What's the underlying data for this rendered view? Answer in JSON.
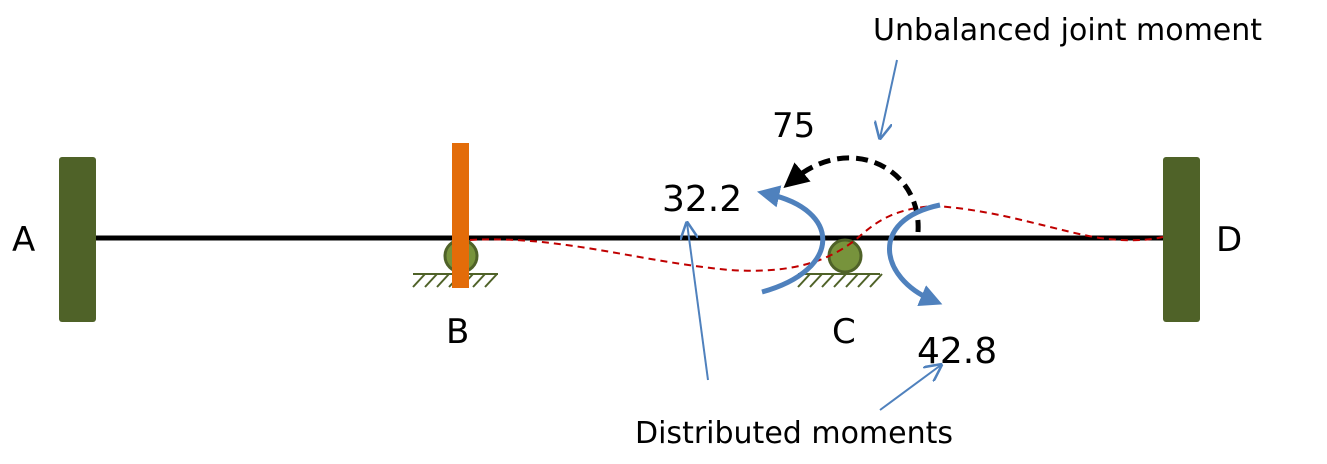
{
  "labels": {
    "support_a": "A",
    "support_b": "B",
    "support_c": "C",
    "support_d": "D",
    "unbalanced_value": "75",
    "distributed_left_value": "32.2",
    "distributed_right_value": "42.8",
    "unbalanced_caption": "Unbalanced joint moment",
    "distributed_caption": "Distributed moments"
  },
  "colors": {
    "beam": "#000000",
    "fixed_support": "#4f6228",
    "roller": "#77933c",
    "roller_stroke": "#4f6228",
    "clamp": "#e36c09",
    "moment_arrow": "#4f81bd",
    "leader_line": "#4f81bd",
    "deflected_shape": "#c00000",
    "unbalanced_arrow": "#000000"
  }
}
